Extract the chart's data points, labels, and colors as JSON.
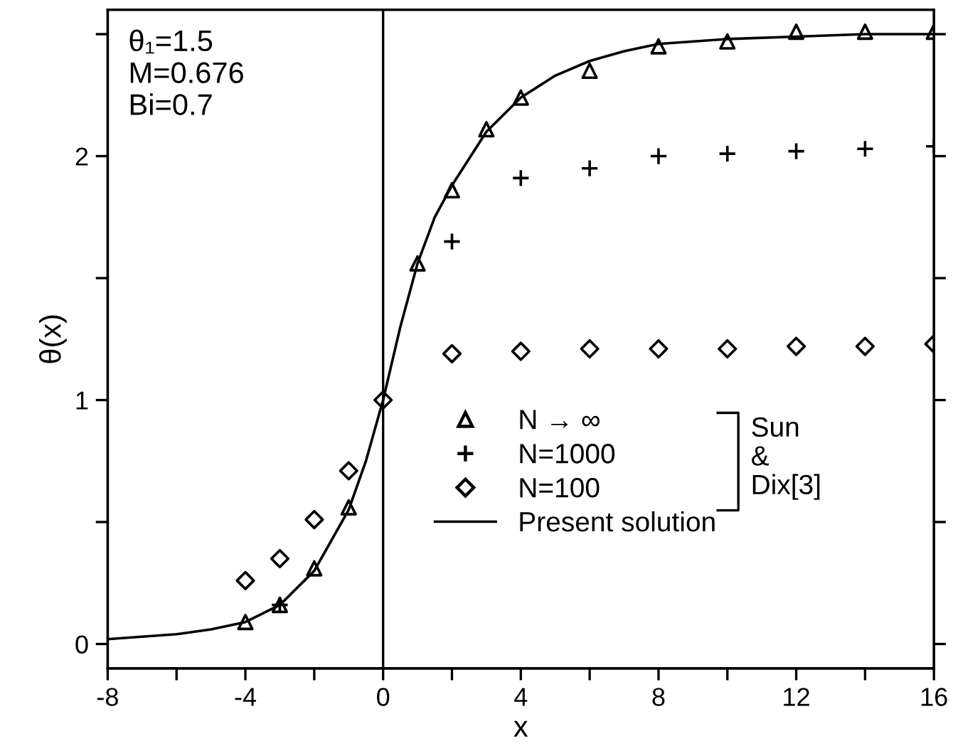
{
  "chart_data": {
    "type": "scatter",
    "xlabel": "x",
    "ylabel": "θ(x)",
    "xlim": [
      -8,
      16
    ],
    "ylim": [
      -0.1,
      2.6
    ],
    "xticks": [
      -8,
      {
        "value": -6,
        "label": null
      },
      -4,
      {
        "value": -2,
        "label": null
      },
      0,
      {
        "value": 2,
        "label": null
      },
      4,
      {
        "value": 6,
        "label": null
      },
      8,
      {
        "value": 10,
        "label": null
      },
      12,
      {
        "value": 14,
        "label": null
      },
      16
    ],
    "yticks": [
      0,
      {
        "value": 0.5,
        "label": null
      },
      1,
      {
        "value": 1.5,
        "label": null
      },
      2,
      {
        "value": 2.5,
        "label": null
      }
    ],
    "grid": false,
    "legend": "bottom right",
    "series": [
      {
        "name": "N → ∞",
        "marker": "triangle",
        "color": "#000000",
        "x": [
          -4,
          -3,
          -2,
          -1,
          0,
          1,
          2,
          3,
          4,
          6,
          8,
          10,
          12,
          14,
          16
        ],
        "values": [
          0.09,
          0.16,
          0.31,
          0.56,
          null,
          1.56,
          1.86,
          2.11,
          2.24,
          2.35,
          2.45,
          2.47,
          2.51,
          2.51,
          2.51
        ]
      },
      {
        "name": "N=1000",
        "marker": "cross",
        "color": "#000000",
        "x": [
          -3,
          2,
          4,
          6,
          8,
          10,
          12,
          14,
          16
        ],
        "values": [
          0.16,
          1.65,
          1.91,
          1.95,
          2.0,
          2.01,
          2.02,
          2.03,
          2.04
        ]
      },
      {
        "name": "N=100",
        "marker": "diamond",
        "color": "#000000",
        "x": [
          -4,
          -3,
          -2,
          -1,
          0,
          2,
          4,
          6,
          8,
          10,
          12,
          14,
          16
        ],
        "values": [
          0.26,
          0.35,
          0.51,
          0.71,
          1.0,
          1.19,
          1.2,
          1.21,
          1.21,
          1.21,
          1.22,
          1.22,
          1.23
        ]
      },
      {
        "name": "Present solution",
        "type": "line",
        "line_style": "solid",
        "marker": "none",
        "color": "#000000",
        "x": [
          -8,
          -7,
          -6,
          -5,
          -4,
          -3,
          -2,
          -1,
          -0.5,
          0,
          0.5,
          1,
          1.5,
          2,
          3,
          4,
          5,
          6,
          7,
          8,
          10,
          12,
          14,
          16
        ],
        "values": [
          0.02,
          0.03,
          0.04,
          0.06,
          0.09,
          0.16,
          0.3,
          0.55,
          0.75,
          1.0,
          1.3,
          1.56,
          1.75,
          1.88,
          2.1,
          2.24,
          2.33,
          2.39,
          2.43,
          2.46,
          2.48,
          2.49,
          2.5,
          2.5
        ]
      }
    ],
    "ref_lines": [
      {
        "axis": "x",
        "value": 0,
        "color": "#000000",
        "line_style": "solid"
      }
    ],
    "annotations": [
      "θ₁=1.5\nM=0.676\nBi=0.7",
      "Sun\n&\nDix[3]"
    ]
  }
}
